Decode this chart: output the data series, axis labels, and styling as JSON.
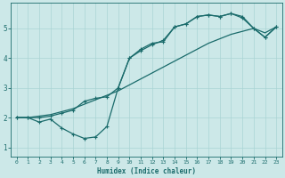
{
  "xlabel": "Humidex (Indice chaleur)",
  "bg_color": "#cce8e8",
  "line_color": "#1a6b6b",
  "grid_color": "#aad4d4",
  "xlim": [
    -0.5,
    23.5
  ],
  "ylim": [
    0.7,
    5.85
  ],
  "xticks": [
    0,
    1,
    2,
    3,
    4,
    5,
    6,
    7,
    8,
    9,
    10,
    11,
    12,
    13,
    14,
    15,
    16,
    17,
    18,
    19,
    20,
    21,
    22,
    23
  ],
  "yticks": [
    1,
    2,
    3,
    4,
    5
  ],
  "line1_x": [
    0,
    1,
    2,
    3,
    4,
    5,
    6,
    7,
    8,
    9,
    10,
    11,
    12,
    13,
    14,
    15,
    16,
    17,
    18,
    19,
    20,
    21,
    22,
    23
  ],
  "line1_y": [
    2.0,
    2.0,
    2.05,
    2.1,
    2.2,
    2.3,
    2.45,
    2.6,
    2.75,
    2.9,
    3.1,
    3.3,
    3.5,
    3.7,
    3.9,
    4.1,
    4.3,
    4.5,
    4.65,
    4.8,
    4.9,
    5.0,
    4.85,
    5.05
  ],
  "line2_x": [
    0,
    1,
    2,
    3,
    4,
    5,
    6,
    7,
    8,
    9,
    10,
    11,
    12,
    13,
    14,
    15,
    16,
    17,
    18,
    19,
    20,
    21,
    22,
    23
  ],
  "line2_y": [
    2.0,
    2.0,
    1.85,
    1.95,
    1.65,
    1.45,
    1.3,
    1.35,
    1.7,
    3.0,
    4.0,
    4.25,
    4.45,
    4.6,
    5.05,
    5.15,
    5.4,
    5.45,
    5.4,
    5.5,
    5.35,
    5.0,
    4.7,
    5.05
  ],
  "line3_x": [
    0,
    1,
    2,
    3,
    4,
    5,
    6,
    7,
    8,
    9,
    10,
    11,
    12,
    13,
    14,
    15,
    16,
    17,
    18,
    19,
    20,
    21,
    22,
    23
  ],
  "line3_y": [
    2.0,
    2.0,
    2.0,
    2.05,
    2.15,
    2.25,
    2.55,
    2.65,
    2.7,
    3.0,
    4.0,
    4.3,
    4.5,
    4.55,
    5.05,
    5.15,
    5.4,
    5.45,
    5.4,
    5.5,
    5.4,
    5.0,
    4.7,
    5.05
  ]
}
